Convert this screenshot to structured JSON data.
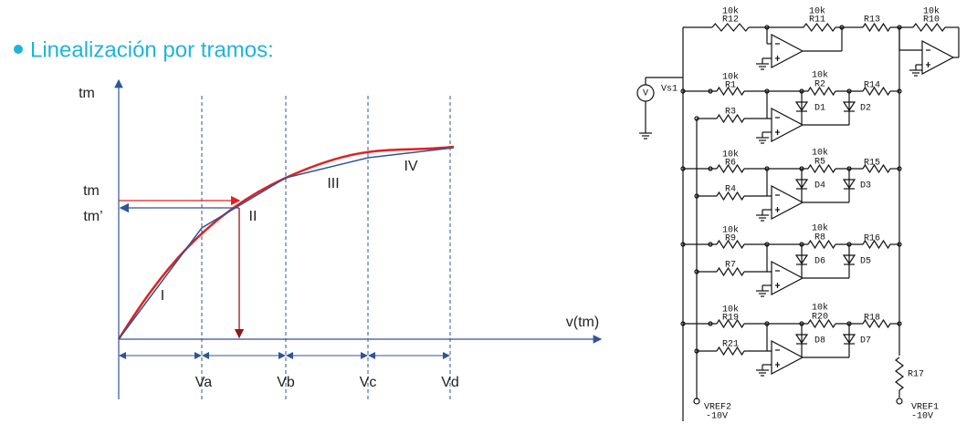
{
  "header": {
    "bullet": "Linealización por tramos:"
  },
  "graph": {
    "y_label": "tm",
    "x_label": "v(tm)",
    "tm": "tm",
    "tm_prime": "tm’",
    "segments": [
      "I",
      "II",
      "III",
      "IV"
    ],
    "breakpoints": [
      "Va",
      "Vb",
      "Vc",
      "Vd"
    ]
  },
  "circuit": {
    "top": {
      "k1": "10k",
      "r1": "R12",
      "k2": "10k",
      "r2": "R11",
      "r3": "R13",
      "k3": "10k",
      "r4": "R10"
    },
    "source": {
      "symbol": "V",
      "name": "Vs1"
    },
    "stages": [
      {
        "k_top": "10k",
        "r_top": "R1",
        "k_fb": "10k",
        "r_fb": "R2",
        "r_out": "R14",
        "r_in": "R3",
        "d_left": "D1",
        "d_right": "D2"
      },
      {
        "k_top": "10k",
        "r_top": "R6",
        "k_fb": "10k",
        "r_fb": "R5",
        "r_out": "R15",
        "r_in": "R4",
        "d_left": "D4",
        "d_right": "D3"
      },
      {
        "k_top": "10k",
        "r_top": "R9",
        "k_fb": "10k",
        "r_fb": "R8",
        "r_out": "R16",
        "r_in": "R7",
        "d_left": "D6",
        "d_right": "D5"
      },
      {
        "k_top": "10k",
        "r_top": "R19",
        "k_fb": "10k",
        "r_fb": "R20",
        "r_out": "R18",
        "r_in": "R21",
        "d_left": "D8",
        "d_right": "D7"
      }
    ],
    "r17": "R17",
    "vref2": {
      "name": "VREF2",
      "value": "-10V"
    },
    "vref1": {
      "name": "VREF1",
      "value": "-10V"
    }
  }
}
